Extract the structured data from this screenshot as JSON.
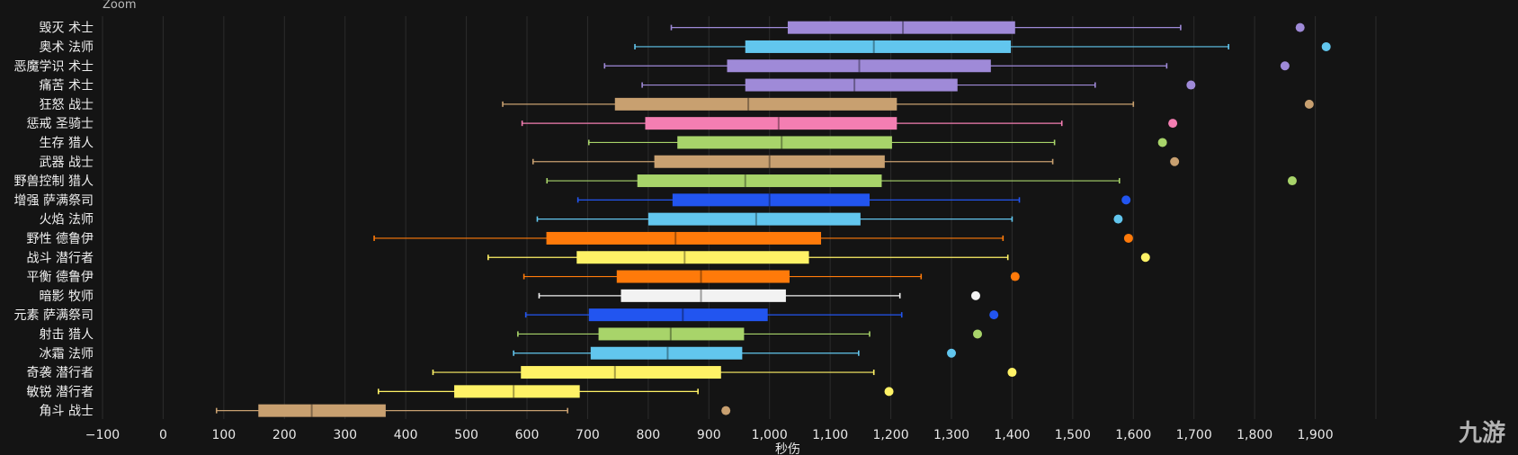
{
  "zoom_label": "Zoom",
  "watermark": "九游",
  "chart_data": {
    "type": "boxplot",
    "orientation": "horizontal",
    "xlabel": "秒伤",
    "xlim": [
      -100,
      2000
    ],
    "x_ticks": [
      -100,
      0,
      100,
      200,
      300,
      400,
      500,
      600,
      700,
      800,
      900,
      1000,
      1100,
      1200,
      1300,
      1400,
      1500,
      1600,
      1700,
      1800,
      1900
    ],
    "x_tick_labels": [
      "−100",
      "0",
      "100",
      "200",
      "300",
      "400",
      "500",
      "600",
      "700",
      "800",
      "900",
      "1,000",
      "1,100",
      "1,200",
      "1,300",
      "1,400",
      "1,500",
      "1,600",
      "1,700",
      "1,800",
      "1,900"
    ],
    "grid": true,
    "series": [
      {
        "label": "毁灭 术士",
        "color": "#9f8ad8",
        "min": 838,
        "q1": 1030,
        "median": 1220,
        "q3": 1405,
        "max": 1678,
        "outlier": 1875
      },
      {
        "label": "奥术 法师",
        "color": "#62c6ee",
        "min": 778,
        "q1": 960,
        "median": 1172,
        "q3": 1398,
        "max": 1757,
        "outlier": 1918
      },
      {
        "label": "恶魔学识 术士",
        "color": "#9f8ad8",
        "min": 728,
        "q1": 930,
        "median": 1148,
        "q3": 1365,
        "max": 1655,
        "outlier": 1850
      },
      {
        "label": "痛苦 术士",
        "color": "#9f8ad8",
        "min": 790,
        "q1": 960,
        "median": 1140,
        "q3": 1310,
        "max": 1537,
        "outlier": 1695
      },
      {
        "label": "狂怒 战士",
        "color": "#c8a070",
        "min": 560,
        "q1": 745,
        "median": 965,
        "q3": 1210,
        "max": 1600,
        "outlier": 1890
      },
      {
        "label": "惩戒 圣骑士",
        "color": "#f47eb2",
        "min": 592,
        "q1": 795,
        "median": 1015,
        "q3": 1210,
        "max": 1482,
        "outlier": 1665
      },
      {
        "label": "生存 猎人",
        "color": "#a8d46a",
        "min": 702,
        "q1": 848,
        "median": 1020,
        "q3": 1202,
        "max": 1470,
        "outlier": 1648
      },
      {
        "label": "武器 战士",
        "color": "#c8a070",
        "min": 610,
        "q1": 810,
        "median": 1000,
        "q3": 1190,
        "max": 1467,
        "outlier": 1668
      },
      {
        "label": "野兽控制 猎人",
        "color": "#a8d46a",
        "min": 633,
        "q1": 782,
        "median": 960,
        "q3": 1185,
        "max": 1577,
        "outlier": 1862
      },
      {
        "label": "增强 萨满祭司",
        "color": "#2255f0",
        "min": 684,
        "q1": 840,
        "median": 1000,
        "q3": 1165,
        "max": 1412,
        "outlier": 1588
      },
      {
        "label": "火焰 法师",
        "color": "#62c6ee",
        "min": 617,
        "q1": 800,
        "median": 978,
        "q3": 1150,
        "max": 1400,
        "outlier": 1575
      },
      {
        "label": "野性 德鲁伊",
        "color": "#ff7a0a",
        "min": 348,
        "q1": 632,
        "median": 845,
        "q3": 1085,
        "max": 1385,
        "outlier": 1592
      },
      {
        "label": "战斗 潜行者",
        "color": "#fff266",
        "min": 536,
        "q1": 682,
        "median": 860,
        "q3": 1065,
        "max": 1393,
        "outlier": 1620
      },
      {
        "label": "平衡 德鲁伊",
        "color": "#ff7a0a",
        "min": 595,
        "q1": 748,
        "median": 887,
        "q3": 1033,
        "max": 1250,
        "outlier": 1405
      },
      {
        "label": "暗影 牧师",
        "color": "#f2f2f2",
        "min": 620,
        "q1": 755,
        "median": 887,
        "q3": 1027,
        "max": 1215,
        "outlier": 1340
      },
      {
        "label": "元素 萨满祭司",
        "color": "#2255f0",
        "min": 598,
        "q1": 702,
        "median": 857,
        "q3": 997,
        "max": 1218,
        "outlier": 1370
      },
      {
        "label": "射击 猎人",
        "color": "#a8d46a",
        "min": 585,
        "q1": 718,
        "median": 837,
        "q3": 958,
        "max": 1165,
        "outlier": 1343
      },
      {
        "label": "冰霜 法师",
        "color": "#62c6ee",
        "min": 578,
        "q1": 705,
        "median": 832,
        "q3": 955,
        "max": 1147,
        "outlier": 1300
      },
      {
        "label": "奇袭 潜行者",
        "color": "#fff266",
        "min": 445,
        "q1": 590,
        "median": 745,
        "q3": 920,
        "max": 1172,
        "outlier": 1400
      },
      {
        "label": "敏锐 潜行者",
        "color": "#fff266",
        "min": 355,
        "q1": 480,
        "median": 578,
        "q3": 687,
        "max": 882,
        "outlier": 1197
      },
      {
        "label": "角斗 战士",
        "color": "#c8a070",
        "min": 88,
        "q1": 157,
        "median": 245,
        "q3": 367,
        "max": 667,
        "outlier": 928
      }
    ]
  }
}
